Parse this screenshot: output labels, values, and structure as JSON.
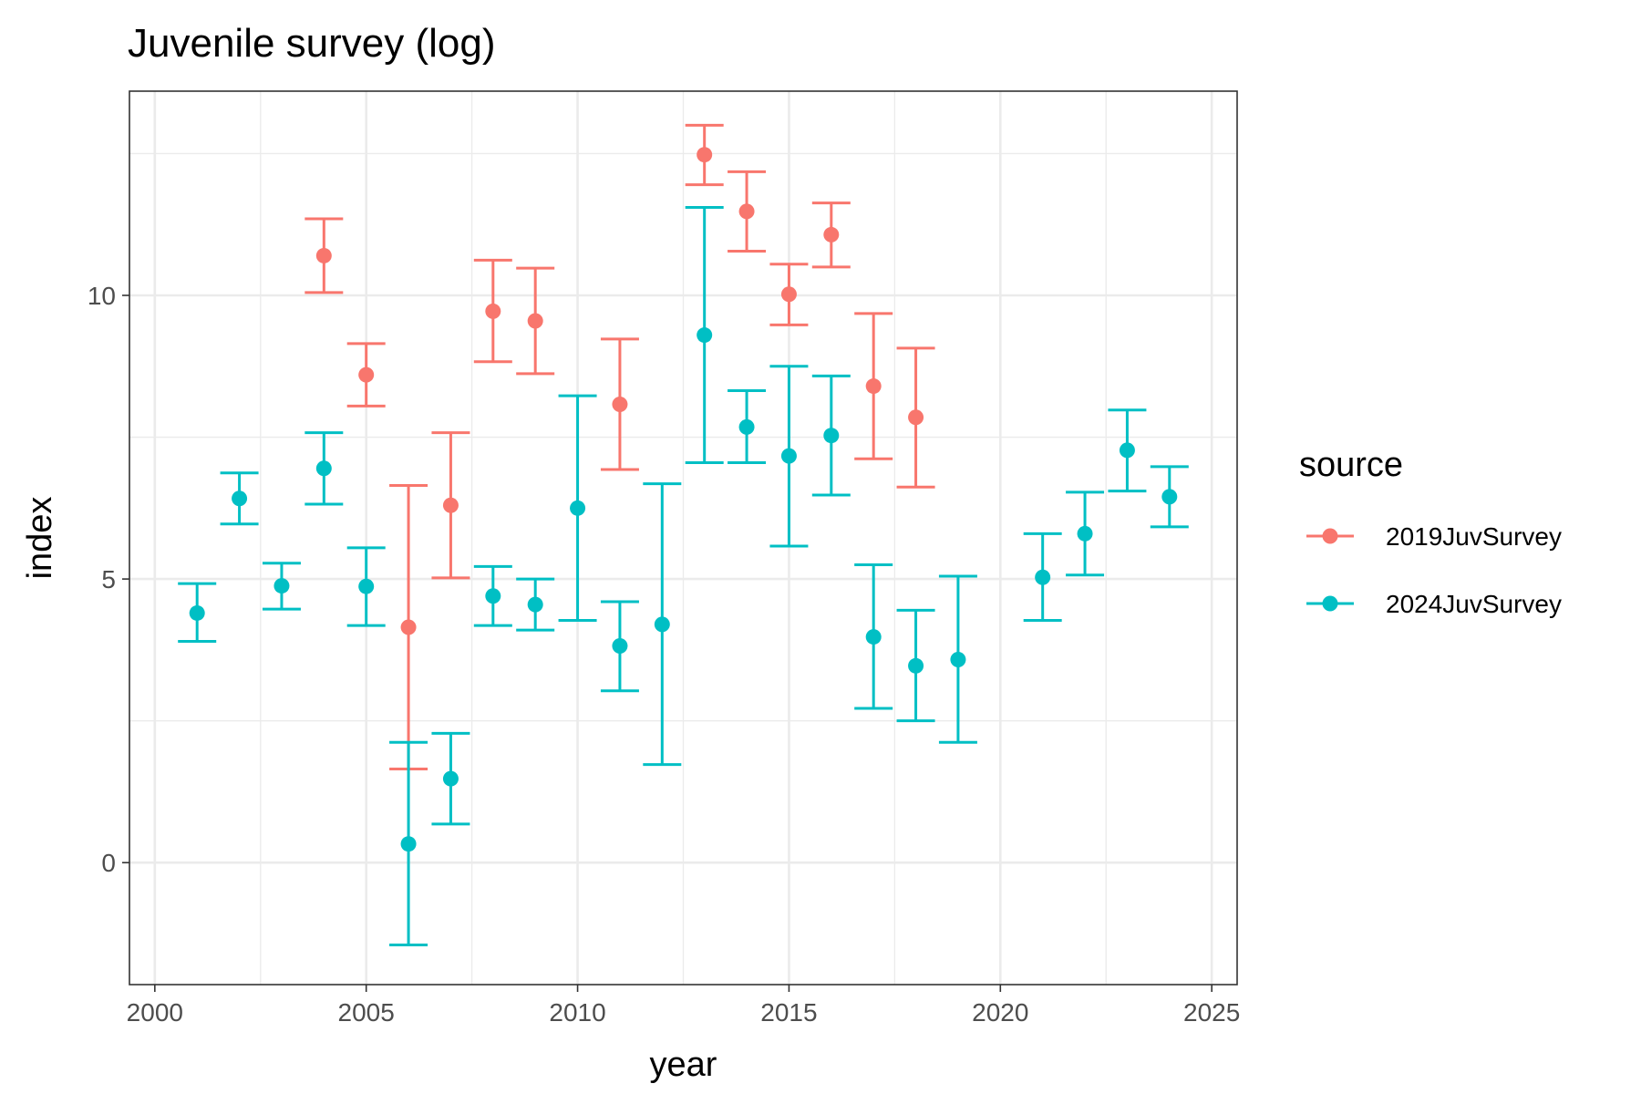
{
  "chart_data": {
    "type": "scatter",
    "title": "Juvenile survey (log)",
    "xlabel": "year",
    "ylabel": "index",
    "xlim": [
      1999.4,
      2025.6
    ],
    "ylim": [
      -2.15,
      13.6
    ],
    "x_ticks": [
      2000,
      2005,
      2010,
      2015,
      2020,
      2025
    ],
    "y_ticks": [
      0,
      5,
      10
    ],
    "x_tick_labels": [
      "2000",
      "2005",
      "2010",
      "2015",
      "2020",
      "2025"
    ],
    "y_tick_labels": [
      "0",
      "5",
      "10"
    ],
    "grid": true,
    "error_bars": true,
    "legend": {
      "title": "source",
      "position": "right",
      "entries": [
        "2019JuvSurvey",
        "2024JuvSurvey"
      ]
    },
    "series": [
      {
        "name": "2019JuvSurvey",
        "color": "#F8766D",
        "points": [
          {
            "x": 2004,
            "y": 10.7,
            "lo": 10.05,
            "hi": 11.35
          },
          {
            "x": 2005,
            "y": 8.6,
            "lo": 8.05,
            "hi": 9.15
          },
          {
            "x": 2006,
            "y": 4.15,
            "lo": 1.65,
            "hi": 6.65
          },
          {
            "x": 2007,
            "y": 6.3,
            "lo": 5.02,
            "hi": 7.58
          },
          {
            "x": 2008,
            "y": 9.72,
            "lo": 8.83,
            "hi": 10.62
          },
          {
            "x": 2009,
            "y": 9.55,
            "lo": 8.62,
            "hi": 10.48
          },
          {
            "x": 2011,
            "y": 8.08,
            "lo": 6.93,
            "hi": 9.23
          },
          {
            "x": 2013,
            "y": 12.48,
            "lo": 11.95,
            "hi": 13.0
          },
          {
            "x": 2014,
            "y": 11.48,
            "lo": 10.78,
            "hi": 12.18
          },
          {
            "x": 2015,
            "y": 10.02,
            "lo": 9.48,
            "hi": 10.55
          },
          {
            "x": 2016,
            "y": 11.07,
            "lo": 10.5,
            "hi": 11.63
          },
          {
            "x": 2017,
            "y": 8.4,
            "lo": 7.12,
            "hi": 9.68
          },
          {
            "x": 2018,
            "y": 7.85,
            "lo": 6.62,
            "hi": 9.07
          }
        ]
      },
      {
        "name": "2024JuvSurvey",
        "color": "#00BFC4",
        "points": [
          {
            "x": 2001,
            "y": 4.4,
            "lo": 3.9,
            "hi": 4.92
          },
          {
            "x": 2002,
            "y": 6.42,
            "lo": 5.97,
            "hi": 6.87
          },
          {
            "x": 2003,
            "y": 4.88,
            "lo": 4.47,
            "hi": 5.28
          },
          {
            "x": 2004,
            "y": 6.95,
            "lo": 6.32,
            "hi": 7.58
          },
          {
            "x": 2005,
            "y": 4.87,
            "lo": 4.18,
            "hi": 5.55
          },
          {
            "x": 2006,
            "y": 0.33,
            "lo": -1.45,
            "hi": 2.12
          },
          {
            "x": 2007,
            "y": 1.48,
            "lo": 0.68,
            "hi": 2.28
          },
          {
            "x": 2008,
            "y": 4.7,
            "lo": 4.18,
            "hi": 5.22
          },
          {
            "x": 2009,
            "y": 4.55,
            "lo": 4.1,
            "hi": 5.0
          },
          {
            "x": 2010,
            "y": 6.25,
            "lo": 4.27,
            "hi": 8.23
          },
          {
            "x": 2011,
            "y": 3.82,
            "lo": 3.03,
            "hi": 4.6
          },
          {
            "x": 2012,
            "y": 4.2,
            "lo": 1.73,
            "hi": 6.68
          },
          {
            "x": 2013,
            "y": 9.3,
            "lo": 7.05,
            "hi": 11.55
          },
          {
            "x": 2014,
            "y": 7.68,
            "lo": 7.05,
            "hi": 8.32
          },
          {
            "x": 2015,
            "y": 7.17,
            "lo": 5.58,
            "hi": 8.75
          },
          {
            "x": 2016,
            "y": 7.53,
            "lo": 6.48,
            "hi": 8.58
          },
          {
            "x": 2017,
            "y": 3.98,
            "lo": 2.72,
            "hi": 5.25
          },
          {
            "x": 2018,
            "y": 3.47,
            "lo": 2.5,
            "hi": 4.45
          },
          {
            "x": 2019,
            "y": 3.58,
            "lo": 2.12,
            "hi": 5.05
          },
          {
            "x": 2021,
            "y": 5.03,
            "lo": 4.27,
            "hi": 5.8
          },
          {
            "x": 2022,
            "y": 5.8,
            "lo": 5.07,
            "hi": 6.53
          },
          {
            "x": 2023,
            "y": 7.27,
            "lo": 6.55,
            "hi": 7.98
          },
          {
            "x": 2024,
            "y": 6.45,
            "lo": 5.92,
            "hi": 6.98
          }
        ]
      }
    ]
  }
}
